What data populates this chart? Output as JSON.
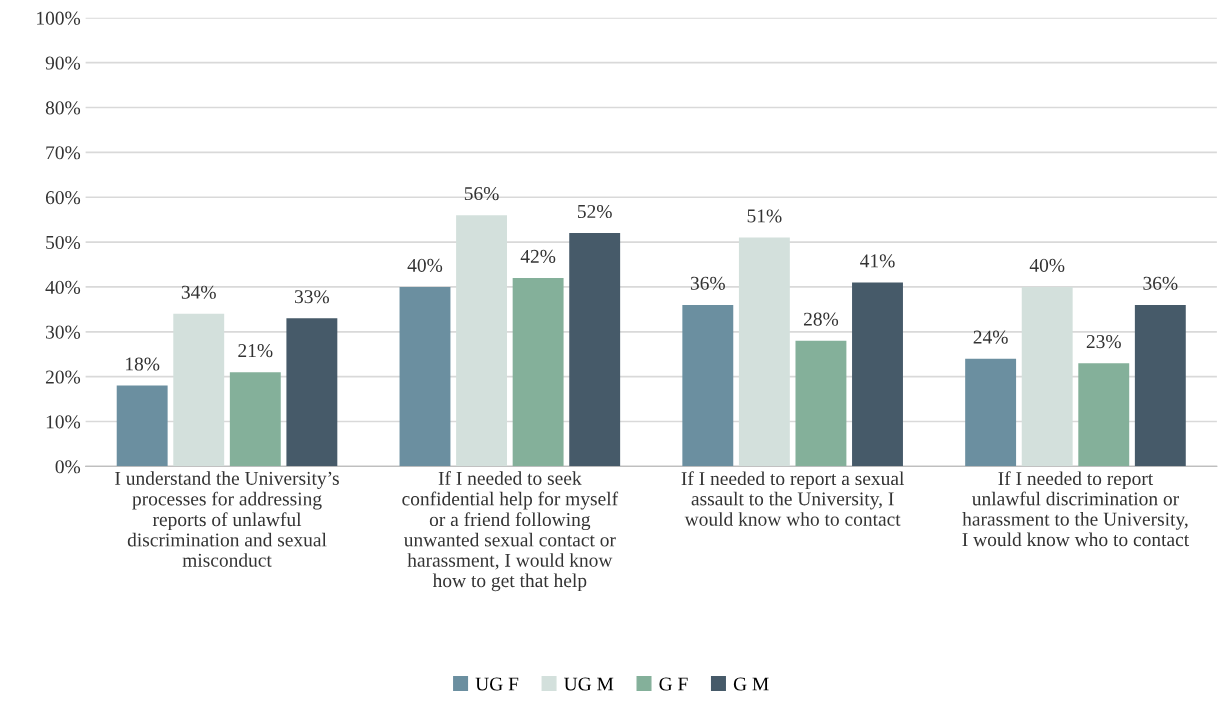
{
  "chart_data": {
    "type": "bar",
    "categories": [
      "I understand the University’s\nprocesses for addressing\nreports of unlawful\ndiscrimination and sexual\nmisconduct",
      "If I needed to seek\nconfidential help for myself\nor a friend following\nunwanted sexual contact or\nharassment, I would know\nhow to get that help",
      "If I needed to report a sexual\nassault to the University, I\nwould know who to contact",
      "If I needed to report\nunlawful discrimination or\nharassment to the University,\nI would know who to contact"
    ],
    "series": [
      {
        "name": "UG F",
        "color": "#6b8fa0",
        "values": [
          18,
          40,
          36,
          24
        ],
        "value_labels": [
          "18%",
          "40%",
          "36%",
          "24%"
        ]
      },
      {
        "name": "UG M",
        "color": "#d3e0dc",
        "values": [
          34,
          56,
          51,
          40
        ],
        "value_labels": [
          "34%",
          "56%",
          "51%",
          "40%"
        ]
      },
      {
        "name": "G F",
        "color": "#84b09a",
        "values": [
          21,
          42,
          28,
          23
        ],
        "value_labels": [
          "21%",
          "42%",
          "28%",
          "23%"
        ]
      },
      {
        "name": "G M",
        "color": "#465a69",
        "values": [
          33,
          52,
          41,
          36
        ],
        "value_labels": [
          "33%",
          "52%",
          "41%",
          "36%"
        ]
      }
    ],
    "ylim": [
      0,
      100
    ],
    "yticks": [
      {
        "value": 0,
        "label": "0%"
      },
      {
        "value": 10,
        "label": "10%"
      },
      {
        "value": 20,
        "label": "20%"
      },
      {
        "value": 30,
        "label": "30%"
      },
      {
        "value": 40,
        "label": "40%"
      },
      {
        "value": 50,
        "label": "50%"
      },
      {
        "value": 60,
        "label": "60%"
      },
      {
        "value": 70,
        "label": "70%"
      },
      {
        "value": 80,
        "label": "80%"
      },
      {
        "value": 90,
        "label": "90%"
      },
      {
        "value": 100,
        "label": "100%"
      }
    ],
    "grid": "y",
    "legend": "bottom"
  }
}
